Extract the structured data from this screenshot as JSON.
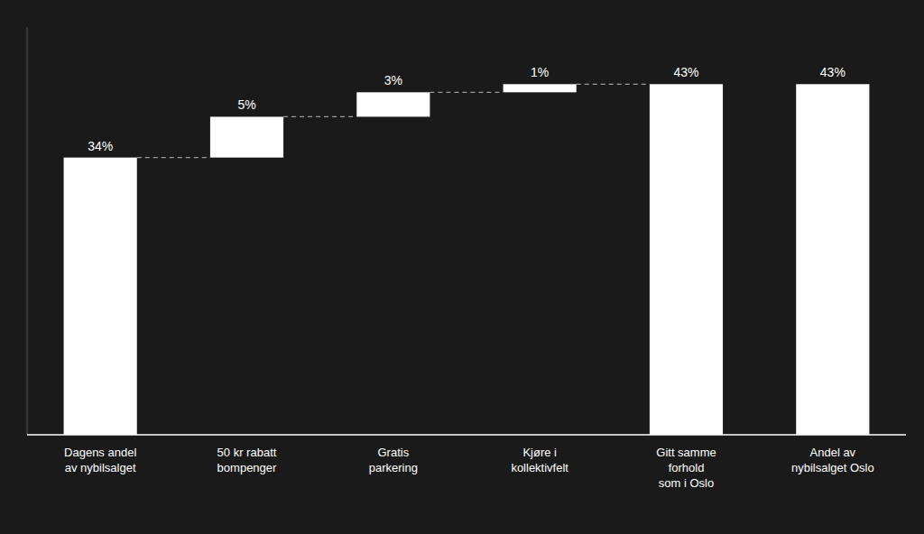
{
  "chart_data": {
    "type": "waterfall",
    "categories": [
      "Dagens andel\nav nybilsalget",
      "50 kr rabatt\nbompenger",
      "Gratis\nparkering",
      "Kjøre i\nkollektivfelt",
      "Gitt samme\nforhold\nsom i Oslo",
      "Andel av\nnybilsalget Oslo"
    ],
    "values": [
      34,
      5,
      3,
      1,
      43,
      43
    ],
    "value_labels": [
      "34%",
      "5%",
      "3%",
      "1%",
      "43%",
      "43%"
    ],
    "color": "#ffffff",
    "ylim": [
      0,
      50
    ],
    "data_labels": true,
    "tick_labels": "x",
    "grid": false
  }
}
